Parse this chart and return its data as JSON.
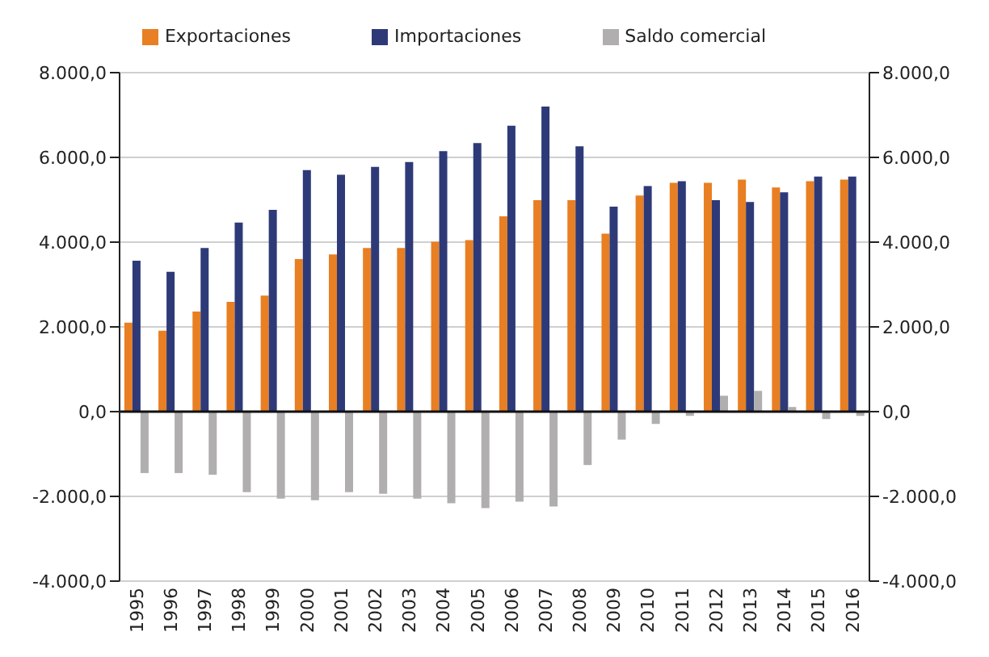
{
  "chart_data": {
    "type": "bar",
    "categories": [
      "1995",
      "1996",
      "1997",
      "1998",
      "1999",
      "2000",
      "2001",
      "2002",
      "2003",
      "2004",
      "2005",
      "2006",
      "2007",
      "2008",
      "2009",
      "2010",
      "2011",
      "2012",
      "2013",
      "2014",
      "2015",
      "2016"
    ],
    "series": [
      {
        "name": "Exportaciones",
        "color": "#e87f22",
        "values": [
          2100,
          1910,
          2360,
          2590,
          2740,
          3600,
          3710,
          3860,
          3860,
          4010,
          4050,
          4610,
          4990,
          4990,
          4200,
          5100,
          5400,
          5400,
          5475,
          5290,
          5440,
          5475
        ]
      },
      {
        "name": "Importaciones",
        "color": "#2e3a78",
        "values": [
          3560,
          3300,
          3860,
          4460,
          4760,
          5700,
          5590,
          5775,
          5890,
          6150,
          6340,
          6750,
          7200,
          6260,
          4840,
          5325,
          5440,
          4990,
          4950,
          5175,
          5550,
          5550
        ]
      },
      {
        "name": "Saldo comercial",
        "color": "#b0aeae",
        "values": [
          -1450,
          -1450,
          -1490,
          -1900,
          -2050,
          -2090,
          -1900,
          -1940,
          -2050,
          -2160,
          -2275,
          -2125,
          -2240,
          -1260,
          -660,
          -290,
          -100,
          375,
          490,
          110,
          -175,
          -100
        ]
      }
    ],
    "ylim": [
      -4000,
      8000
    ],
    "yticks": [
      {
        "value": -4000,
        "label": "-4.000,0"
      },
      {
        "value": -2000,
        "label": "-2.000,0"
      },
      {
        "value": 0,
        "label": "0,0"
      },
      {
        "value": 2000,
        "label": "2.000,0"
      },
      {
        "value": 4000,
        "label": "4.000,0"
      },
      {
        "value": 6000,
        "label": "6.000,0"
      },
      {
        "value": 8000,
        "label": "8.000,0"
      }
    ],
    "y2lim": [
      -4000,
      8000
    ],
    "y2ticks": [
      {
        "value": -4000,
        "label": "-4.000,0"
      },
      {
        "value": -2000,
        "label": "-2.000,0"
      },
      {
        "value": 0,
        "label": "0,0"
      },
      {
        "value": 2000,
        "label": "2.000,0"
      },
      {
        "value": 4000,
        "label": "4.000,0"
      },
      {
        "value": 6000,
        "label": "6.000,0"
      },
      {
        "value": 8000,
        "label": "8.000,0"
      }
    ],
    "grid": "y",
    "legend": "top"
  }
}
